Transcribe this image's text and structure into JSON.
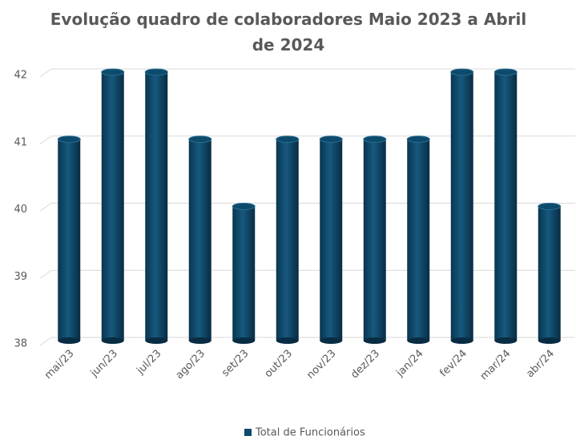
{
  "chart_data": {
    "type": "bar",
    "title": "Evolução quadro de colaboradores Maio 2023 a Abril de 2024",
    "categories": [
      "mai/23",
      "jun/23",
      "jul/23",
      "ago/23",
      "set/23",
      "out/23",
      "nov/23",
      "dez/23",
      "jan/24",
      "fev/24",
      "mar/24",
      "abr/24"
    ],
    "series": [
      {
        "name": "Total de Funcionários",
        "color": "#0d4a6b",
        "values": [
          41,
          42,
          42,
          41,
          40,
          41,
          41,
          41,
          41,
          42,
          42,
          40
        ]
      }
    ],
    "ylim": [
      38,
      42
    ],
    "yticks": [
      38,
      39,
      40,
      41,
      42
    ],
    "grid": true,
    "legend": "bottom"
  }
}
